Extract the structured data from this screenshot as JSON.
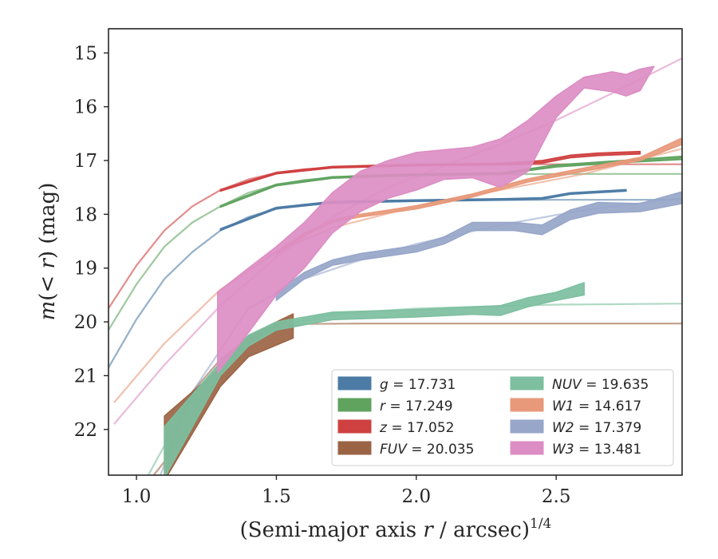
{
  "chart_data": {
    "type": "line",
    "xlabel": "(Semi-major axis r / arcsec)^{1/4}",
    "ylabel": "m(< r) (mag)",
    "xlim": [
      0.9,
      2.95
    ],
    "ylim": [
      22.85,
      14.55
    ],
    "y_inverted": true,
    "grid": false,
    "legend_position": "lower-right",
    "x_ticks": [
      1.0,
      1.5,
      2.0,
      2.5
    ],
    "x_tick_labels": [
      "1.0",
      "1.5",
      "2.0",
      "2.5"
    ],
    "y_ticks": [
      15,
      16,
      17,
      18,
      19,
      20,
      21,
      22
    ],
    "y_tick_labels": [
      "15",
      "16",
      "17",
      "18",
      "19",
      "20",
      "21",
      "22"
    ],
    "series": [
      {
        "name": "g = 17.731",
        "band": "g",
        "value": "17.731",
        "color": "#4c7ba5",
        "curve": [
          [
            0.9,
            20.85
          ],
          [
            1.0,
            19.95
          ],
          [
            1.1,
            19.2
          ],
          [
            1.2,
            18.7
          ],
          [
            1.3,
            18.3
          ],
          [
            1.4,
            18.05
          ],
          [
            1.5,
            17.9
          ],
          [
            1.6,
            17.82
          ],
          [
            1.8,
            17.76
          ],
          [
            2.0,
            17.74
          ],
          [
            2.5,
            17.73
          ],
          [
            2.95,
            17.73
          ]
        ],
        "band_lower": [
          [
            1.3,
            18.3
          ],
          [
            1.5,
            17.9
          ],
          [
            1.7,
            17.79
          ],
          [
            2.0,
            17.76
          ],
          [
            2.3,
            17.74
          ],
          [
            2.45,
            17.72
          ],
          [
            2.55,
            17.63
          ],
          [
            2.75,
            17.57
          ]
        ],
        "band_upper": [
          [
            1.3,
            18.27
          ],
          [
            1.5,
            17.87
          ],
          [
            1.7,
            17.76
          ],
          [
            2.0,
            17.73
          ],
          [
            2.3,
            17.71
          ],
          [
            2.45,
            17.69
          ],
          [
            2.55,
            17.6
          ],
          [
            2.75,
            17.54
          ]
        ]
      },
      {
        "name": "r = 17.249",
        "band": "r",
        "value": "17.249",
        "color": "#5fa35f",
        "curve": [
          [
            0.9,
            20.15
          ],
          [
            1.0,
            19.3
          ],
          [
            1.1,
            18.6
          ],
          [
            1.2,
            18.15
          ],
          [
            1.3,
            17.85
          ],
          [
            1.4,
            17.6
          ],
          [
            1.5,
            17.45
          ],
          [
            1.6,
            17.36
          ],
          [
            1.8,
            17.28
          ],
          [
            2.0,
            17.26
          ],
          [
            2.5,
            17.25
          ],
          [
            2.95,
            17.25
          ]
        ],
        "band_lower": [
          [
            1.3,
            17.87
          ],
          [
            1.5,
            17.47
          ],
          [
            1.7,
            17.33
          ],
          [
            2.0,
            17.28
          ],
          [
            2.3,
            17.26
          ],
          [
            2.5,
            17.12
          ],
          [
            2.7,
            17.05
          ],
          [
            2.95,
            16.98
          ]
        ],
        "band_upper": [
          [
            1.3,
            17.84
          ],
          [
            1.5,
            17.44
          ],
          [
            1.7,
            17.3
          ],
          [
            2.0,
            17.25
          ],
          [
            2.3,
            17.23
          ],
          [
            2.5,
            17.08
          ],
          [
            2.7,
            17.01
          ],
          [
            2.95,
            16.92
          ]
        ]
      },
      {
        "name": "z = 17.052",
        "band": "z",
        "value": "17.052",
        "color": "#cf4040",
        "curve": [
          [
            0.9,
            19.75
          ],
          [
            1.0,
            18.95
          ],
          [
            1.1,
            18.3
          ],
          [
            1.2,
            17.85
          ],
          [
            1.3,
            17.55
          ],
          [
            1.4,
            17.35
          ],
          [
            1.5,
            17.23
          ],
          [
            1.6,
            17.16
          ],
          [
            1.8,
            17.1
          ],
          [
            2.0,
            17.08
          ],
          [
            2.5,
            17.07
          ],
          [
            2.95,
            17.07
          ]
        ],
        "band_lower": [
          [
            1.3,
            17.57
          ],
          [
            1.5,
            17.25
          ],
          [
            1.7,
            17.14
          ],
          [
            2.0,
            17.1
          ],
          [
            2.3,
            17.08
          ],
          [
            2.45,
            17.05
          ],
          [
            2.55,
            16.95
          ],
          [
            2.65,
            16.91
          ],
          [
            2.8,
            16.88
          ]
        ],
        "band_upper": [
          [
            1.3,
            17.54
          ],
          [
            1.5,
            17.22
          ],
          [
            1.7,
            17.11
          ],
          [
            2.0,
            17.07
          ],
          [
            2.3,
            17.05
          ],
          [
            2.45,
            17.0
          ],
          [
            2.55,
            16.9
          ],
          [
            2.65,
            16.86
          ],
          [
            2.8,
            16.83
          ]
        ]
      },
      {
        "name": "FUV = 20.035",
        "band": "FUV",
        "value": "20.035",
        "color": "#9b6444",
        "curve": [
          [
            0.9,
            23.9
          ],
          [
            1.1,
            22.6
          ],
          [
            1.2,
            21.3
          ],
          [
            1.3,
            20.7
          ],
          [
            1.4,
            20.3
          ],
          [
            1.5,
            20.1
          ],
          [
            1.6,
            20.04
          ],
          [
            1.8,
            20.03
          ],
          [
            2.95,
            20.03
          ]
        ],
        "band_lower": [
          [
            1.1,
            22.95
          ],
          [
            1.3,
            21.2
          ],
          [
            1.4,
            20.65
          ],
          [
            1.56,
            20.3
          ]
        ],
        "band_upper": [
          [
            1.1,
            21.75
          ],
          [
            1.3,
            20.85
          ],
          [
            1.4,
            20.25
          ],
          [
            1.56,
            19.85
          ]
        ]
      },
      {
        "name": "NUV = 19.635",
        "band": "NUV",
        "value": "19.635",
        "color": "#7dbfa0",
        "curve": [
          [
            0.9,
            24.2
          ],
          [
            1.1,
            22.3
          ],
          [
            1.2,
            21.4
          ],
          [
            1.3,
            20.8
          ],
          [
            1.4,
            20.35
          ],
          [
            1.5,
            20.08
          ],
          [
            1.7,
            19.86
          ],
          [
            2.0,
            19.75
          ],
          [
            2.5,
            19.68
          ],
          [
            2.95,
            19.66
          ]
        ],
        "band_lower": [
          [
            1.1,
            22.9
          ],
          [
            1.2,
            21.95
          ],
          [
            1.3,
            21.0
          ],
          [
            1.4,
            20.45
          ],
          [
            1.5,
            20.15
          ],
          [
            1.7,
            19.96
          ],
          [
            2.0,
            19.91
          ],
          [
            2.2,
            19.86
          ],
          [
            2.3,
            19.88
          ],
          [
            2.4,
            19.72
          ],
          [
            2.5,
            19.6
          ],
          [
            2.6,
            19.5
          ]
        ],
        "band_upper": [
          [
            1.1,
            21.95
          ],
          [
            1.2,
            21.35
          ],
          [
            1.3,
            20.75
          ],
          [
            1.4,
            20.25
          ],
          [
            1.5,
            20.0
          ],
          [
            1.7,
            19.82
          ],
          [
            2.0,
            19.77
          ],
          [
            2.2,
            19.72
          ],
          [
            2.3,
            19.7
          ],
          [
            2.4,
            19.55
          ],
          [
            2.5,
            19.45
          ],
          [
            2.6,
            19.27
          ]
        ]
      },
      {
        "name": "W1 = 14.617",
        "band": "W1",
        "value": "14.617",
        "color": "#e8997a",
        "curve": [
          [
            0.92,
            21.5
          ],
          [
            1.1,
            20.4
          ],
          [
            1.3,
            19.4
          ],
          [
            1.5,
            18.7
          ],
          [
            1.7,
            18.25
          ],
          [
            2.0,
            17.85
          ],
          [
            2.3,
            17.55
          ],
          [
            2.6,
            17.25
          ],
          [
            2.95,
            16.78
          ]
        ],
        "band_lower": [
          [
            1.5,
            18.75
          ],
          [
            1.6,
            18.4
          ],
          [
            1.7,
            18.15
          ],
          [
            1.8,
            18.05
          ],
          [
            2.0,
            17.9
          ],
          [
            2.2,
            17.68
          ],
          [
            2.4,
            17.4
          ],
          [
            2.6,
            17.2
          ],
          [
            2.8,
            17.0
          ],
          [
            2.95,
            16.7
          ]
        ],
        "band_upper": [
          [
            1.5,
            18.7
          ],
          [
            1.6,
            18.35
          ],
          [
            1.7,
            18.1
          ],
          [
            1.8,
            18.0
          ],
          [
            2.0,
            17.84
          ],
          [
            2.2,
            17.62
          ],
          [
            2.4,
            17.34
          ],
          [
            2.6,
            17.14
          ],
          [
            2.8,
            16.94
          ],
          [
            2.95,
            16.58
          ]
        ]
      },
      {
        "name": "W2 = 17.379",
        "band": "W2",
        "value": "17.379",
        "color": "#97a6c9",
        "curve": [
          [
            1.0,
            24.0
          ],
          [
            1.2,
            21.3
          ],
          [
            1.4,
            19.75
          ],
          [
            1.6,
            19.2
          ],
          [
            1.8,
            18.85
          ],
          [
            2.0,
            18.55
          ],
          [
            2.3,
            18.2
          ],
          [
            2.6,
            17.92
          ],
          [
            2.95,
            17.7
          ]
        ],
        "band_lower": [
          [
            1.5,
            19.6
          ],
          [
            1.6,
            19.2
          ],
          [
            1.7,
            18.95
          ],
          [
            1.8,
            18.85
          ],
          [
            2.0,
            18.7
          ],
          [
            2.1,
            18.55
          ],
          [
            2.2,
            18.3
          ],
          [
            2.35,
            18.3
          ],
          [
            2.45,
            18.38
          ],
          [
            2.55,
            18.1
          ],
          [
            2.65,
            17.98
          ],
          [
            2.8,
            17.95
          ],
          [
            2.95,
            17.8
          ]
        ],
        "band_upper": [
          [
            1.5,
            19.45
          ],
          [
            1.6,
            19.08
          ],
          [
            1.7,
            18.85
          ],
          [
            1.8,
            18.73
          ],
          [
            2.0,
            18.58
          ],
          [
            2.1,
            18.42
          ],
          [
            2.2,
            18.15
          ],
          [
            2.35,
            18.15
          ],
          [
            2.45,
            18.2
          ],
          [
            2.55,
            17.92
          ],
          [
            2.65,
            17.78
          ],
          [
            2.8,
            17.8
          ],
          [
            2.95,
            17.58
          ]
        ]
      },
      {
        "name": "W3 = 13.481",
        "band": "W3",
        "value": "13.481",
        "color": "#dc8dc3",
        "curve": [
          [
            0.92,
            21.9
          ],
          [
            1.1,
            20.8
          ],
          [
            1.3,
            19.7
          ],
          [
            1.5,
            18.8
          ],
          [
            1.7,
            18.05
          ],
          [
            1.9,
            17.5
          ],
          [
            2.1,
            17.1
          ],
          [
            2.3,
            16.7
          ],
          [
            2.5,
            16.25
          ],
          [
            2.7,
            15.75
          ],
          [
            2.95,
            15.1
          ]
        ],
        "band_lower": [
          [
            1.29,
            20.95
          ],
          [
            1.4,
            20.2
          ],
          [
            1.5,
            19.5
          ],
          [
            1.6,
            19.0
          ],
          [
            1.7,
            18.35
          ],
          [
            1.8,
            17.95
          ],
          [
            1.9,
            17.7
          ],
          [
            2.0,
            17.55
          ],
          [
            2.1,
            17.35
          ],
          [
            2.2,
            17.32
          ],
          [
            2.3,
            17.5
          ],
          [
            2.4,
            17.2
          ],
          [
            2.5,
            16.2
          ],
          [
            2.6,
            15.65
          ],
          [
            2.7,
            15.72
          ],
          [
            2.75,
            15.8
          ],
          [
            2.8,
            15.7
          ]
        ],
        "band_upper": [
          [
            1.29,
            19.45
          ],
          [
            1.4,
            19.0
          ],
          [
            1.5,
            18.6
          ],
          [
            1.6,
            18.15
          ],
          [
            1.7,
            17.6
          ],
          [
            1.8,
            17.2
          ],
          [
            1.9,
            17.0
          ],
          [
            2.0,
            16.85
          ],
          [
            2.1,
            16.8
          ],
          [
            2.2,
            16.75
          ],
          [
            2.3,
            16.6
          ],
          [
            2.4,
            16.25
          ],
          [
            2.5,
            15.8
          ],
          [
            2.6,
            15.45
          ],
          [
            2.7,
            15.35
          ],
          [
            2.75,
            15.4
          ],
          [
            2.8,
            15.3
          ],
          [
            2.85,
            15.25
          ]
        ]
      }
    ]
  }
}
